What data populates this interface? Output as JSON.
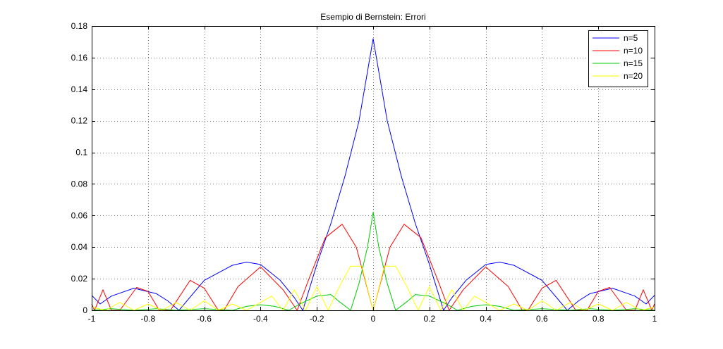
{
  "chart_data": {
    "type": "line",
    "title": "Esempio di Bernstein: Errori",
    "xlabel": "",
    "ylabel": "",
    "xlim": [
      -1,
      1
    ],
    "ylim": [
      0,
      0.18
    ],
    "xticks": [
      "-1",
      "-0.8",
      "-0.6",
      "-0.4",
      "-0.2",
      "0",
      "0.2",
      "0.4",
      "0.6",
      "0.8",
      "1"
    ],
    "xtick_values": [
      -1,
      -0.8,
      -0.6,
      -0.4,
      -0.2,
      0,
      0.2,
      0.4,
      0.6,
      0.8,
      1
    ],
    "yticks": [
      "0",
      "0.02",
      "0.04",
      "0.06",
      "0.08",
      "0.1",
      "0.12",
      "0.14",
      "0.16",
      "0.18"
    ],
    "ytick_values": [
      0,
      0.02,
      0.04,
      0.06,
      0.08,
      0.1,
      0.12,
      0.14,
      0.16,
      0.18
    ],
    "grid": true,
    "legend_position": "top-right",
    "series": [
      {
        "name": "n=5",
        "color": "#0000ff",
        "x": [
          -1,
          -0.97,
          -0.93,
          -0.85,
          -0.77,
          -0.73,
          -0.69,
          -0.6,
          -0.5,
          -0.45,
          -0.4,
          -0.33,
          -0.28,
          -0.25,
          -0.2,
          -0.15,
          -0.1,
          -0.05,
          0,
          0.05,
          0.1,
          0.15,
          0.2,
          0.25,
          0.28,
          0.33,
          0.4,
          0.45,
          0.5,
          0.6,
          0.69,
          0.73,
          0.77,
          0.85,
          0.93,
          0.97,
          1
        ],
        "y": [
          0.0095,
          0.004,
          0.009,
          0.014,
          0.0105,
          0.006,
          0.0,
          0.019,
          0.0285,
          0.0305,
          0.029,
          0.019,
          0.008,
          0.0,
          0.029,
          0.055,
          0.085,
          0.12,
          0.172,
          0.12,
          0.085,
          0.055,
          0.029,
          0.0,
          0.008,
          0.019,
          0.029,
          0.0305,
          0.0285,
          0.019,
          0.0,
          0.006,
          0.0105,
          0.014,
          0.009,
          0.004,
          0.0095
        ]
      },
      {
        "name": "n=10",
        "color": "#ff0000",
        "x": [
          -1,
          -0.99,
          -0.96,
          -0.93,
          -0.9,
          -0.84,
          -0.8,
          -0.76,
          -0.72,
          -0.7,
          -0.65,
          -0.6,
          -0.55,
          -0.53,
          -0.48,
          -0.4,
          -0.32,
          -0.27,
          -0.23,
          -0.17,
          -0.11,
          -0.06,
          0,
          0.06,
          0.11,
          0.17,
          0.23,
          0.27,
          0.32,
          0.4,
          0.48,
          0.53,
          0.55,
          0.6,
          0.65,
          0.7,
          0.72,
          0.76,
          0.8,
          0.84,
          0.9,
          0.93,
          0.96,
          0.99,
          1
        ],
        "y": [
          0.004,
          0.0,
          0.013,
          0.0,
          0.0,
          0.0145,
          0.012,
          0.0,
          0.0,
          0.0055,
          0.019,
          0.014,
          0.0,
          0.0,
          0.015,
          0.0275,
          0.013,
          0.0,
          0.019,
          0.046,
          0.0545,
          0.04,
          0.0,
          0.04,
          0.0545,
          0.046,
          0.019,
          0.0,
          0.013,
          0.0275,
          0.015,
          0.0,
          0.0,
          0.014,
          0.019,
          0.0055,
          0.0,
          0.0,
          0.012,
          0.0145,
          0.0,
          0.0,
          0.013,
          0.0,
          0.004
        ]
      },
      {
        "name": "n=15",
        "color": "#00cc00",
        "x": [
          -1,
          -0.93,
          -0.85,
          -0.77,
          -0.7,
          -0.6,
          -0.5,
          -0.45,
          -0.4,
          -0.35,
          -0.3,
          -0.26,
          -0.2,
          -0.15,
          -0.12,
          -0.08,
          -0.05,
          -0.02,
          0,
          0.02,
          0.05,
          0.08,
          0.12,
          0.15,
          0.2,
          0.26,
          0.3,
          0.35,
          0.4,
          0.45,
          0.5,
          0.6,
          0.7,
          0.77,
          0.85,
          0.93,
          1
        ],
        "y": [
          0.0,
          0.001,
          0.0,
          0.001,
          0.0,
          0.001,
          0.0,
          0.0025,
          0.0035,
          0.0025,
          0.0,
          0.004,
          0.009,
          0.01,
          0.0055,
          0.0,
          0.017,
          0.04,
          0.062,
          0.04,
          0.017,
          0.0,
          0.0055,
          0.01,
          0.009,
          0.004,
          0.0,
          0.0025,
          0.0035,
          0.0025,
          0.0,
          0.001,
          0.0,
          0.001,
          0.0,
          0.001,
          0.0
        ]
      },
      {
        "name": "n=20",
        "color": "#ffff00",
        "x": [
          -1,
          -0.95,
          -0.9,
          -0.85,
          -0.8,
          -0.75,
          -0.7,
          -0.65,
          -0.6,
          -0.55,
          -0.5,
          -0.45,
          -0.4,
          -0.36,
          -0.32,
          -0.28,
          -0.24,
          -0.2,
          -0.16,
          -0.12,
          -0.08,
          -0.04,
          0,
          0.04,
          0.08,
          0.12,
          0.16,
          0.2,
          0.24,
          0.28,
          0.32,
          0.36,
          0.4,
          0.45,
          0.5,
          0.55,
          0.6,
          0.65,
          0.7,
          0.75,
          0.8,
          0.85,
          0.9,
          0.95,
          1
        ],
        "y": [
          0.002,
          0.0,
          0.005,
          0.0,
          0.004,
          0.0,
          0.005,
          0.0,
          0.006,
          0.0,
          0.004,
          0.0,
          0.005,
          0.009,
          0.0,
          0.013,
          0.0,
          0.015,
          0.0,
          0.015,
          0.028,
          0.028,
          0.0,
          0.028,
          0.028,
          0.015,
          0.0,
          0.015,
          0.0,
          0.013,
          0.0,
          0.009,
          0.005,
          0.0,
          0.004,
          0.0,
          0.006,
          0.0,
          0.005,
          0.0,
          0.004,
          0.0,
          0.005,
          0.0,
          0.002
        ]
      }
    ]
  }
}
